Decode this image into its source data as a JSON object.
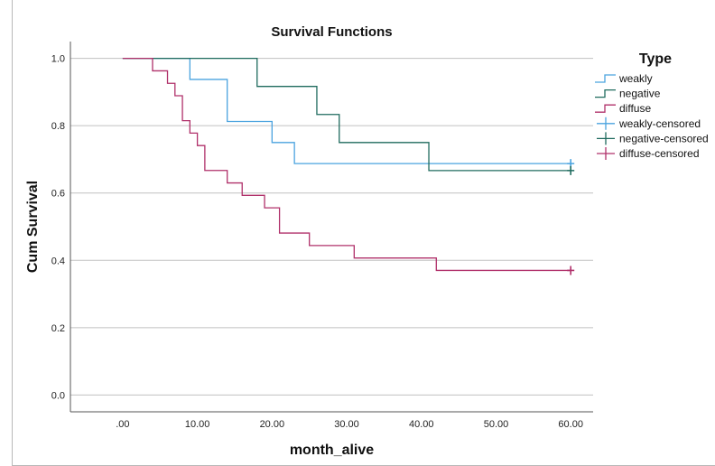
{
  "chart_data": {
    "type": "line",
    "step": true,
    "title": "Survival Functions",
    "xlabel": "month_alive",
    "ylabel": "Cum Survival",
    "xlim": [
      -7,
      63
    ],
    "ylim": [
      -0.05,
      1.05
    ],
    "xticks": [
      0,
      10,
      20,
      30,
      40,
      50,
      60
    ],
    "xtick_labels": [
      ".00",
      "10.00",
      "20.00",
      "30.00",
      "40.00",
      "50.00",
      "60.00"
    ],
    "yticks": [
      0,
      0.2,
      0.4,
      0.6,
      0.8,
      1.0
    ],
    "ytick_labels": [
      "0.0",
      "0.2",
      "0.4",
      "0.6",
      "0.8",
      "1.0"
    ],
    "grid": "horizontal",
    "legend": {
      "title": "Type",
      "placement": "right",
      "entries": [
        "weakly",
        "negative",
        "diffuse",
        "weakly-censored",
        "negative-censored",
        "diffuse-censored"
      ]
    },
    "series": [
      {
        "name": "weakly",
        "color": "#4aa3df",
        "x": [
          0,
          9,
          14,
          20,
          23,
          60
        ],
        "y": [
          1.0,
          0.9375,
          0.8125,
          0.75,
          0.6875,
          0.6875
        ],
        "censored": [
          {
            "x": 60,
            "y": 0.6875
          }
        ]
      },
      {
        "name": "negative",
        "color": "#1f6b5e",
        "x": [
          0,
          18,
          26,
          29,
          41,
          60
        ],
        "y": [
          1.0,
          0.9167,
          0.8333,
          0.75,
          0.6667,
          0.6667
        ],
        "censored": [
          {
            "x": 60,
            "y": 0.6667
          }
        ]
      },
      {
        "name": "diffuse",
        "color": "#b0306a",
        "x": [
          0,
          4,
          6,
          7,
          8,
          9,
          10,
          11,
          14,
          16,
          19,
          21,
          25,
          31,
          42,
          60
        ],
        "y": [
          1.0,
          0.963,
          0.926,
          0.889,
          0.815,
          0.778,
          0.741,
          0.667,
          0.63,
          0.593,
          0.556,
          0.481,
          0.444,
          0.407,
          0.37,
          0.37
        ],
        "censored": [
          {
            "x": 60,
            "y": 0.37
          }
        ]
      }
    ]
  }
}
